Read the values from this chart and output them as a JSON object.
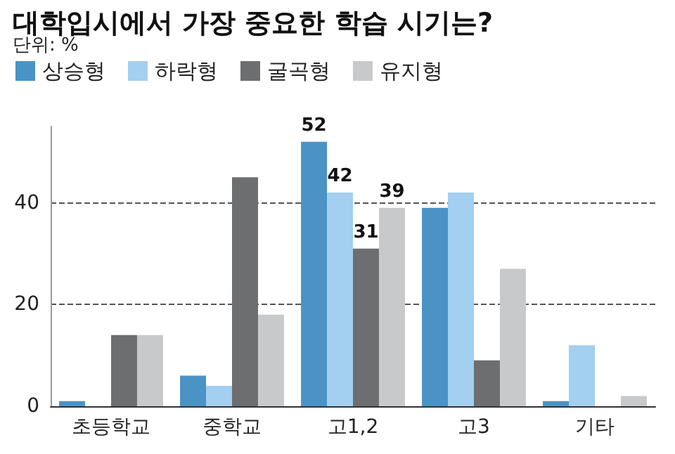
{
  "chart_data": {
    "type": "bar",
    "title": "대학입시에서 가장 중요한 학습 시기는?",
    "subtitle": "단위: %",
    "categories": [
      "초등학교",
      "중학교",
      "고1,2",
      "고3",
      "기타"
    ],
    "series": [
      {
        "name": "상승형",
        "color": "#4a93c4",
        "values": [
          1,
          6,
          52,
          39,
          1
        ],
        "value_labels": [
          null,
          null,
          "52",
          null,
          null
        ]
      },
      {
        "name": "하락형",
        "color": "#a3cff0",
        "values": [
          0,
          4,
          42,
          42,
          12
        ],
        "value_labels": [
          null,
          null,
          "42",
          null,
          null
        ]
      },
      {
        "name": "굴곡형",
        "color": "#6d6e70",
        "values": [
          14,
          45,
          31,
          9,
          0
        ],
        "value_labels": [
          null,
          null,
          "31",
          null,
          null
        ]
      },
      {
        "name": "유지형",
        "color": "#c8c9cb",
        "values": [
          14,
          18,
          39,
          27,
          2
        ],
        "value_labels": [
          null,
          null,
          "39",
          null,
          null
        ]
      }
    ],
    "ylim": [
      0,
      55
    ],
    "yticks": [
      0,
      20,
      40
    ],
    "grid": "y",
    "legend": "top left"
  }
}
